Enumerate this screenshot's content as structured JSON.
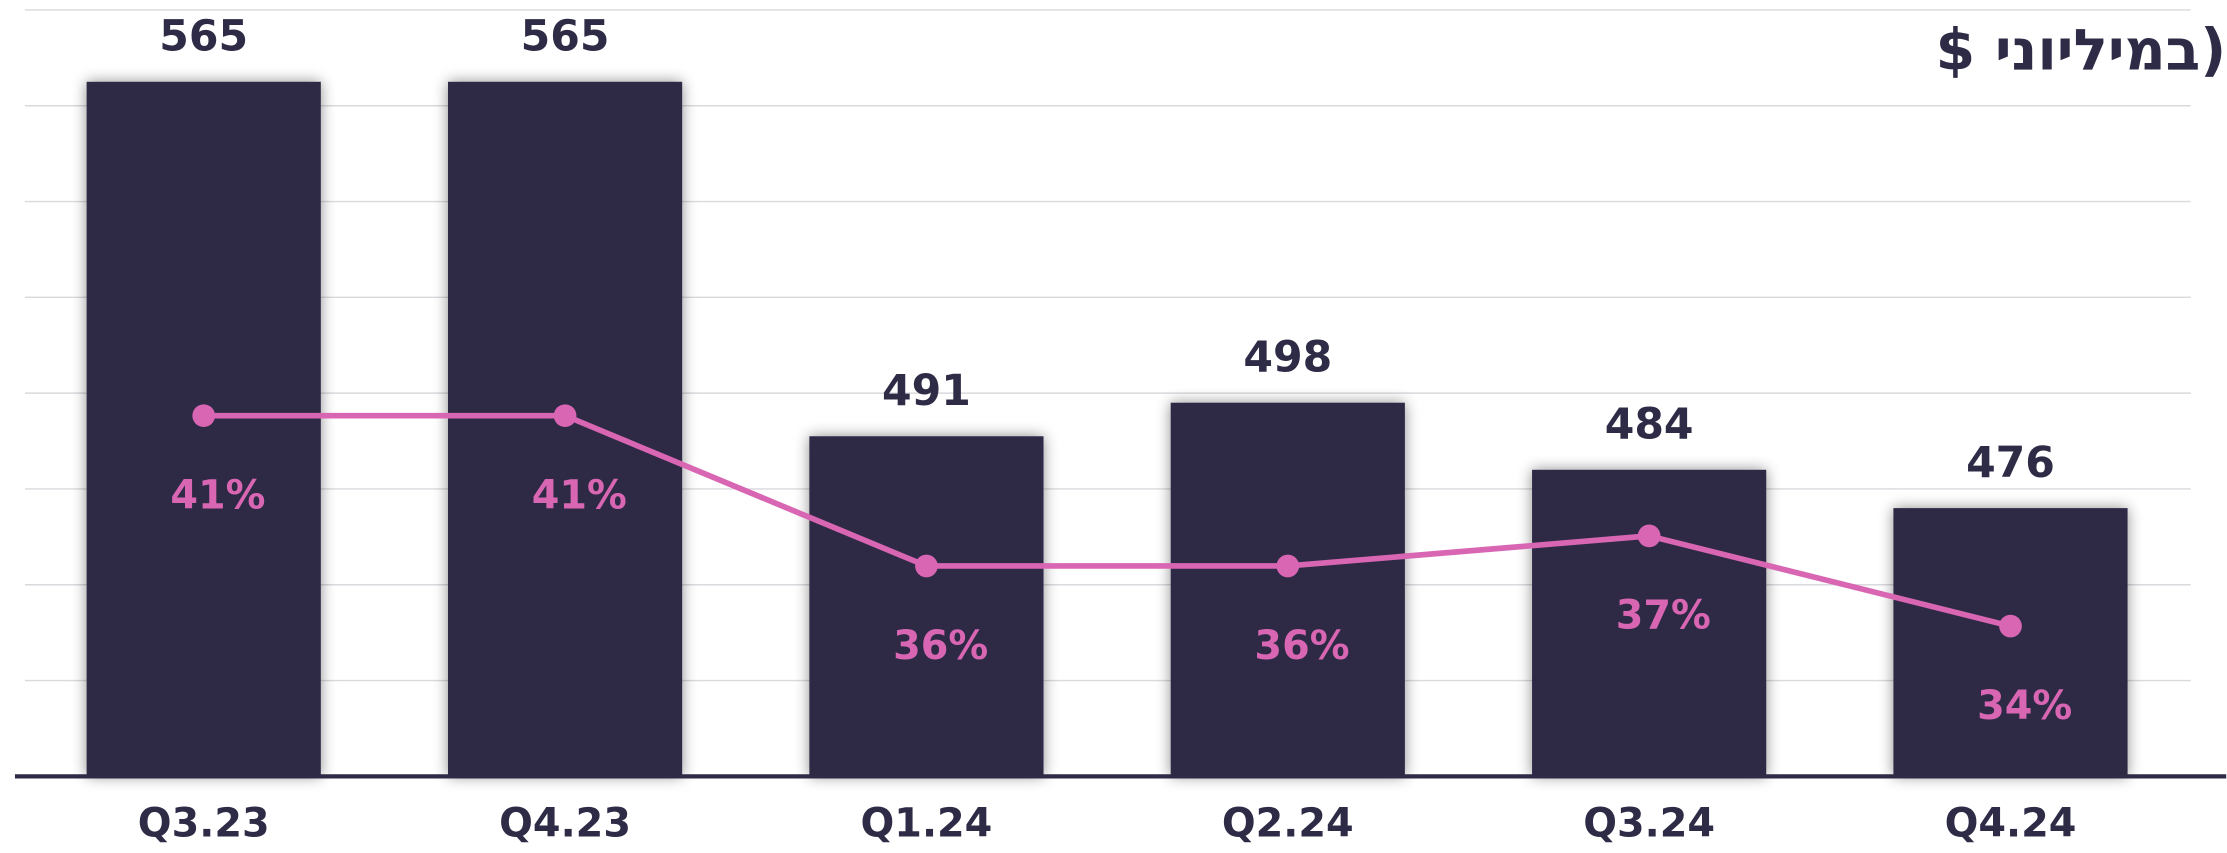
{
  "chart_data": {
    "type": "bar",
    "title": "(במיליוני $",
    "categories": [
      "Q3.23",
      "Q4.23",
      "Q1.24",
      "Q2.24",
      "Q3.24",
      "Q4.24"
    ],
    "series": [
      {
        "type": "bar",
        "color": "#2d2b45",
        "values": [
          565,
          565,
          491,
          498,
          484,
          476
        ]
      },
      {
        "type": "line",
        "axis": "y2",
        "color": "#d966b3",
        "values": [
          41,
          41,
          36,
          36,
          37,
          34
        ],
        "value_labels": [
          "41%",
          "41%",
          "36%",
          "36%",
          "37%",
          "34%"
        ]
      }
    ],
    "ylim": [
      420,
      580
    ],
    "yticks": [
      420,
      440,
      460,
      480,
      500,
      520,
      540,
      560,
      580
    ],
    "y2lim": [
      29,
      54.5
    ],
    "grid": true
  }
}
